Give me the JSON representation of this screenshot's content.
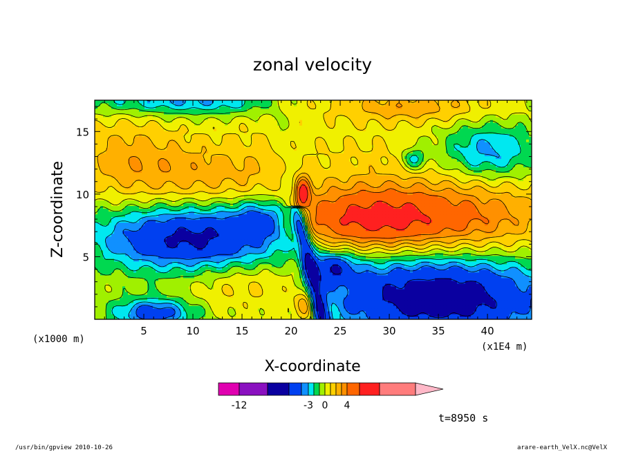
{
  "chart_data": {
    "type": "heatmap",
    "title": "zonal velocity",
    "xlabel": "X-coordinate",
    "ylabel": "Z-coordinate",
    "x_unit_left": "(x1000 m)",
    "x_unit_right": "(x1E4 m)",
    "xlim": [
      0,
      44.5
    ],
    "ylim": [
      0,
      17.5
    ],
    "x_ticks": [
      "5",
      "10",
      "15",
      "20",
      "25",
      "30",
      "35",
      "40"
    ],
    "x_tick_values": [
      5,
      10,
      15,
      20,
      25,
      30,
      35,
      40
    ],
    "y_ticks": [
      "5",
      "10",
      "15"
    ],
    "y_tick_values": [
      5,
      10,
      15
    ],
    "colorbar": {
      "levels": [
        -15,
        -12,
        -9,
        -6,
        -4,
        -3,
        -2,
        -1,
        0,
        1,
        2,
        3,
        4,
        6,
        8,
        12
      ],
      "labels": [
        "-12",
        "-3",
        "0",
        "4"
      ],
      "label_values": [
        -12,
        -3,
        0,
        4
      ],
      "colors": [
        "#e000b0",
        "#8a10c0",
        "#0a00a0",
        "#0040f0",
        "#1090ff",
        "#00e8f0",
        "#00d850",
        "#a0f000",
        "#f0f000",
        "#ffd000",
        "#ffb000",
        "#ff9000",
        "#ff6600",
        "#ff2020",
        "#ff7c7c"
      ],
      "extend_color": "#ffb8c8"
    },
    "annotation": "t=8950 s",
    "grid": false
  },
  "footer": {
    "left": "/usr/bin/gpview   2010-10-26",
    "right": "arare-earth_VelX.nc@VelX"
  }
}
